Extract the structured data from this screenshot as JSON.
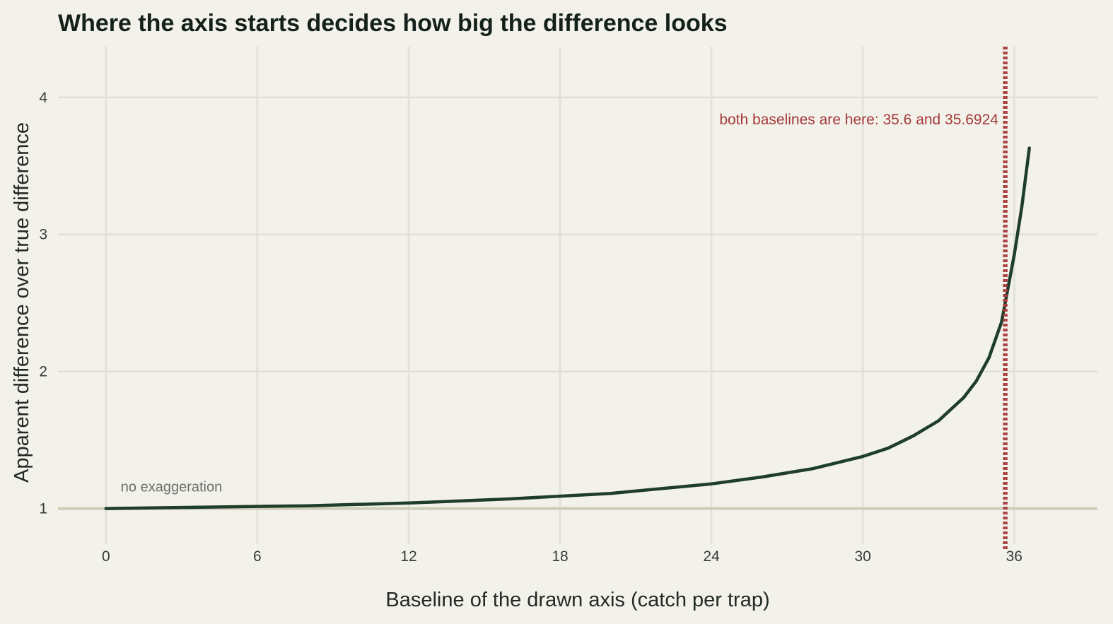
{
  "chart_data": {
    "type": "line",
    "title": "Where the axis starts decides how big the difference looks",
    "xlabel": "Baseline of the drawn axis (catch per trap)",
    "ylabel": "Apparent difference over true difference",
    "xlim": [
      -1.9,
      39.3
    ],
    "ylim": [
      0.74,
      4.37
    ],
    "x_ticks": [
      "0",
      "6",
      "12",
      "18",
      "24",
      "30",
      "36"
    ],
    "y_ticks": [
      "1",
      "2",
      "3",
      "4"
    ],
    "grid": true,
    "series": [
      {
        "color": "#1f3d2b",
        "x": [
          0,
          4,
          8,
          12,
          16,
          20,
          24,
          26,
          28,
          30,
          31,
          32,
          33,
          34,
          34.5,
          35,
          35.5,
          36,
          36.3,
          36.6
        ],
        "y": [
          1.0,
          1.01,
          1.02,
          1.04,
          1.07,
          1.11,
          1.18,
          1.23,
          1.29,
          1.38,
          1.44,
          1.53,
          1.64,
          1.81,
          1.93,
          2.1,
          2.36,
          2.85,
          3.2,
          3.63
        ]
      }
    ],
    "reference_line": {
      "y": 1,
      "label": "no exaggeration",
      "color": "#cdcdb9"
    },
    "baseline_marker": {
      "x_values": [
        35.6,
        35.6924
      ],
      "label": "both baselines are here: 35.6 and 35.6924",
      "color": "#a63a3a"
    }
  }
}
